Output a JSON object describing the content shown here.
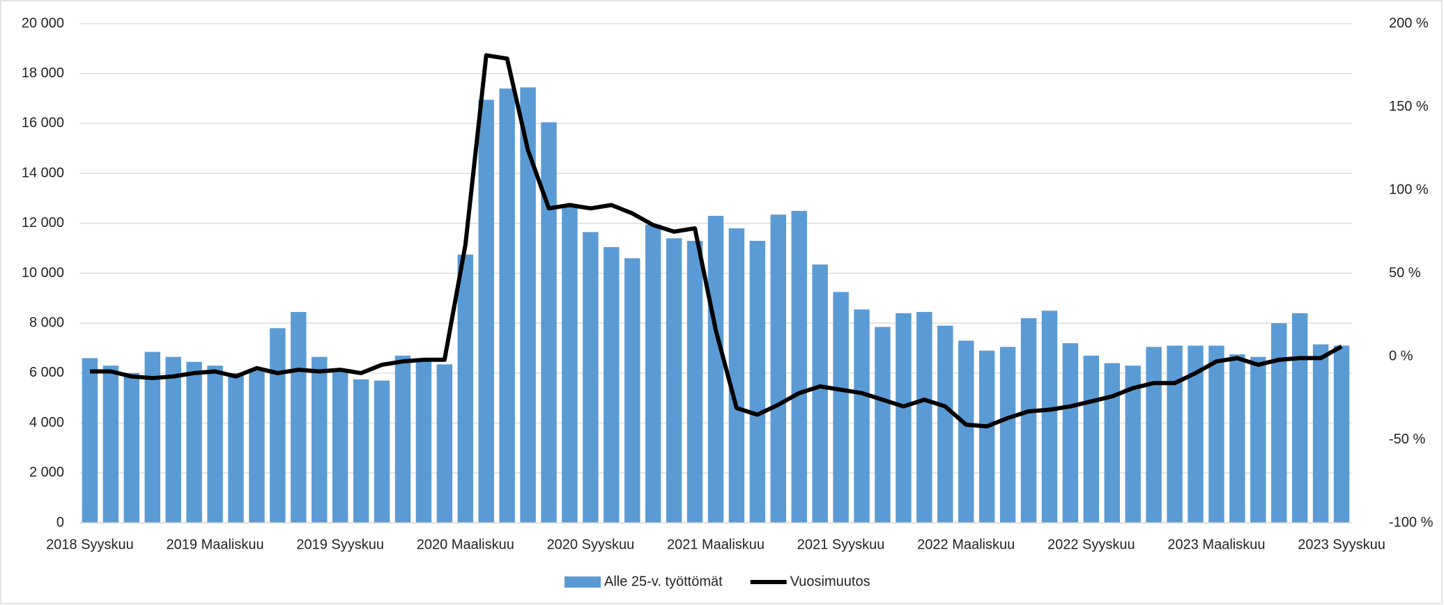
{
  "chart_data": {
    "type": "bar-line",
    "categories": [
      "2018 Syyskuu",
      null,
      null,
      null,
      null,
      null,
      "2019 Maaliskuu",
      null,
      null,
      null,
      null,
      null,
      "2019 Syyskuu",
      null,
      null,
      null,
      null,
      null,
      "2020 Maaliskuu",
      null,
      null,
      null,
      null,
      null,
      "2020 Syyskuu",
      null,
      null,
      null,
      null,
      null,
      "2021 Maaliskuu",
      null,
      null,
      null,
      null,
      null,
      "2021 Syyskuu",
      null,
      null,
      null,
      null,
      null,
      "2022 Maaliskuu",
      null,
      null,
      null,
      null,
      null,
      "2022 Syyskuu",
      null,
      null,
      null,
      null,
      null,
      "2023 Maaliskuu",
      null,
      null,
      null,
      null,
      null,
      "2023 Syyskuu"
    ],
    "series": [
      {
        "name": "Alle 25-v. työttömät",
        "type": "bar",
        "color": "#5b9bd5",
        "values": [
          6600,
          6300,
          6000,
          6850,
          6650,
          6450,
          6300,
          6000,
          6100,
          7800,
          8450,
          6650,
          6150,
          5750,
          5700,
          6700,
          6550,
          6350,
          10750,
          16950,
          17400,
          17450,
          16050,
          12700,
          11650,
          11050,
          10600,
          11950,
          11400,
          11300,
          12300,
          11800,
          11300,
          12350,
          12500,
          10350,
          9250,
          8550,
          7850,
          8400,
          8450,
          7900,
          7300,
          6900,
          7050,
          8200,
          8500,
          7200,
          6700,
          6400,
          6300,
          7050,
          7100,
          7100,
          7100,
          6750,
          6650,
          8000,
          8400,
          7150,
          7100
        ]
      },
      {
        "name": "Vuosimuutos",
        "type": "line",
        "axis": "y2",
        "color": "#000000",
        "values": [
          -9,
          -9,
          -12,
          -13,
          -12,
          -10,
          -9,
          -12,
          -7,
          -10,
          -8,
          -9,
          -8,
          -10,
          -5,
          -3,
          -2,
          -2,
          67,
          181,
          179,
          124,
          89,
          91,
          89,
          91,
          86,
          79,
          75,
          77,
          16,
          -31,
          -35,
          -29,
          -22,
          -18,
          -20,
          -22,
          -26,
          -30,
          -26,
          -30,
          -41,
          -42,
          -37,
          -33,
          -32,
          -30,
          -27,
          -24,
          -19,
          -16,
          -16,
          -10,
          -3,
          -1,
          -5,
          -2,
          -1,
          -1,
          6
        ]
      }
    ],
    "ylim": [
      0,
      20000
    ],
    "yticks": [
      0,
      {
        "value": 2000,
        "label": "2 000"
      },
      {
        "value": 4000,
        "label": "4 000"
      },
      {
        "value": 6000,
        "label": "6 000"
      },
      {
        "value": 8000,
        "label": "8 000"
      },
      {
        "value": 10000,
        "label": "10 000"
      },
      {
        "value": 12000,
        "label": "12 000"
      },
      {
        "value": 14000,
        "label": "14 000"
      },
      {
        "value": 16000,
        "label": "16 000"
      },
      {
        "value": 18000,
        "label": "18 000"
      },
      {
        "value": 20000,
        "label": "20 000"
      }
    ],
    "y2lim": [
      -100,
      200
    ],
    "y2ticks": [
      {
        "value": -100,
        "label": "-100 %"
      },
      {
        "value": -50,
        "label": "-50 %"
      },
      {
        "value": 0,
        "label": "0 %"
      },
      {
        "value": 50,
        "label": "50 %"
      },
      {
        "value": 100,
        "label": "100 %"
      },
      {
        "value": 150,
        "label": "150 %"
      },
      {
        "value": 200,
        "label": "200 %"
      }
    ],
    "grid": true,
    "legend": "bottom"
  }
}
